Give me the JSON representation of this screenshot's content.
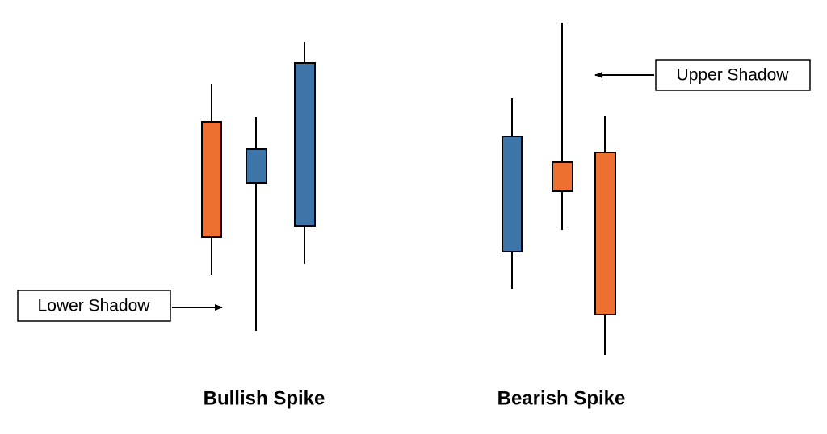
{
  "labels": {
    "lower_shadow": "Lower Shadow",
    "upper_shadow": "Upper Shadow"
  },
  "groups": [
    {
      "title": "Bullish Spike"
    },
    {
      "title": "Bearish Spike"
    }
  ]
}
